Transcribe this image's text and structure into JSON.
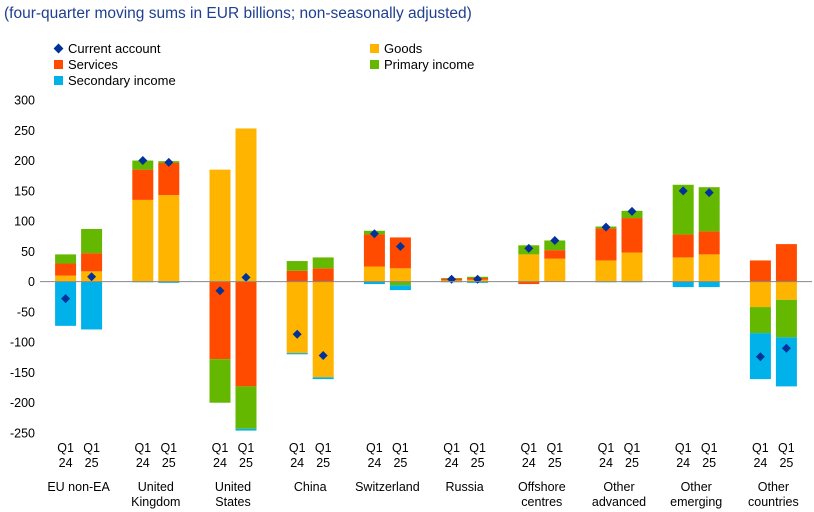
{
  "subtitle": "(four-quarter moving sums in EUR billions; non-seasonally adjusted)",
  "legend": {
    "current_account": "Current account",
    "goods": "Goods",
    "services": "Services",
    "primary_income": "Primary income",
    "secondary_income": "Secondary income"
  },
  "colors": {
    "goods": "#ffb400",
    "services": "#ff4b00",
    "primary_income": "#65b800",
    "secondary_income": "#00b1ea",
    "current_account": "#003299"
  },
  "chart_data": {
    "type": "bar",
    "subtitle": "(four-quarter moving sums in EUR billions; non-seasonally adjusted)",
    "ylim": [
      -250,
      300
    ],
    "yticks": [
      300,
      250,
      200,
      150,
      100,
      50,
      0,
      -50,
      -100,
      -150,
      -200,
      -250
    ],
    "grid": false,
    "legend_position": "top",
    "groups": [
      {
        "label": "EU non-EA",
        "bars": [
          {
            "q": "Q1",
            "y": "24",
            "goods": 10,
            "services": 20,
            "primary_income": 15,
            "secondary_income": -73,
            "current_account": -28
          },
          {
            "q": "Q1",
            "y": "25",
            "goods": 17,
            "services": 30,
            "primary_income": 40,
            "secondary_income": -79,
            "current_account": 8
          }
        ]
      },
      {
        "label": "United Kingdom",
        "bars": [
          {
            "q": "Q1",
            "y": "24",
            "goods": 135,
            "services": 50,
            "primary_income": 15,
            "secondary_income": -1,
            "current_account": 200
          },
          {
            "q": "Q1",
            "y": "25",
            "goods": 143,
            "services": 53,
            "primary_income": 3,
            "secondary_income": -2,
            "current_account": 197
          }
        ]
      },
      {
        "label": "United States",
        "bars": [
          {
            "q": "Q1",
            "y": "24",
            "goods": 185,
            "services": -128,
            "primary_income": -72,
            "secondary_income": 0,
            "current_account": -15
          },
          {
            "q": "Q1",
            "y": "25",
            "goods": 253,
            "services": -173,
            "primary_income": -70,
            "secondary_income": -3,
            "current_account": 7
          }
        ]
      },
      {
        "label": "China",
        "bars": [
          {
            "q": "Q1",
            "y": "24",
            "goods": -118,
            "services": 18,
            "primary_income": 16,
            "secondary_income": -2,
            "current_account": -87
          },
          {
            "q": "Q1",
            "y": "25",
            "goods": -158,
            "services": 22,
            "primary_income": 18,
            "secondary_income": -3,
            "current_account": -122
          }
        ]
      },
      {
        "label": "Switzerland",
        "bars": [
          {
            "q": "Q1",
            "y": "24",
            "goods": 25,
            "services": 53,
            "primary_income": 6,
            "secondary_income": -4,
            "current_account": 79
          },
          {
            "q": "Q1",
            "y": "25",
            "goods": 22,
            "services": 51,
            "primary_income": -6,
            "secondary_income": -8,
            "current_account": 58
          }
        ]
      },
      {
        "label": "Russia",
        "bars": [
          {
            "q": "Q1",
            "y": "24",
            "goods": 2,
            "services": 3,
            "primary_income": 1,
            "secondary_income": -1,
            "current_account": 4
          },
          {
            "q": "Q1",
            "y": "25",
            "goods": 3,
            "services": 3,
            "primary_income": 2,
            "secondary_income": -2,
            "current_account": 4
          }
        ]
      },
      {
        "label": "Offshore centres",
        "bars": [
          {
            "q": "Q1",
            "y": "24",
            "goods": 45,
            "services": -4,
            "primary_income": 15,
            "secondary_income": 0,
            "current_account": 55
          },
          {
            "q": "Q1",
            "y": "25",
            "goods": 38,
            "services": 14,
            "primary_income": 16,
            "secondary_income": 0,
            "current_account": 68
          }
        ]
      },
      {
        "label": "Other advanced",
        "bars": [
          {
            "q": "Q1",
            "y": "24",
            "goods": 35,
            "services": 53,
            "primary_income": 3,
            "secondary_income": -1,
            "current_account": 90
          },
          {
            "q": "Q1",
            "y": "25",
            "goods": 48,
            "services": 57,
            "primary_income": 12,
            "secondary_income": -1,
            "current_account": 116
          }
        ]
      },
      {
        "label": "Other emerging",
        "bars": [
          {
            "q": "Q1",
            "y": "24",
            "goods": 40,
            "services": 38,
            "primary_income": 82,
            "secondary_income": -9,
            "current_account": 150
          },
          {
            "q": "Q1",
            "y": "25",
            "goods": 45,
            "services": 38,
            "primary_income": 73,
            "secondary_income": -9,
            "current_account": 147
          }
        ]
      },
      {
        "label": "Other countries",
        "bars": [
          {
            "q": "Q1",
            "y": "24",
            "goods": -42,
            "services": 35,
            "primary_income": -43,
            "secondary_income": -76,
            "current_account": -124
          },
          {
            "q": "Q1",
            "y": "25",
            "goods": -30,
            "services": 62,
            "primary_income": -62,
            "secondary_income": -81,
            "current_account": -110
          }
        ]
      }
    ]
  }
}
